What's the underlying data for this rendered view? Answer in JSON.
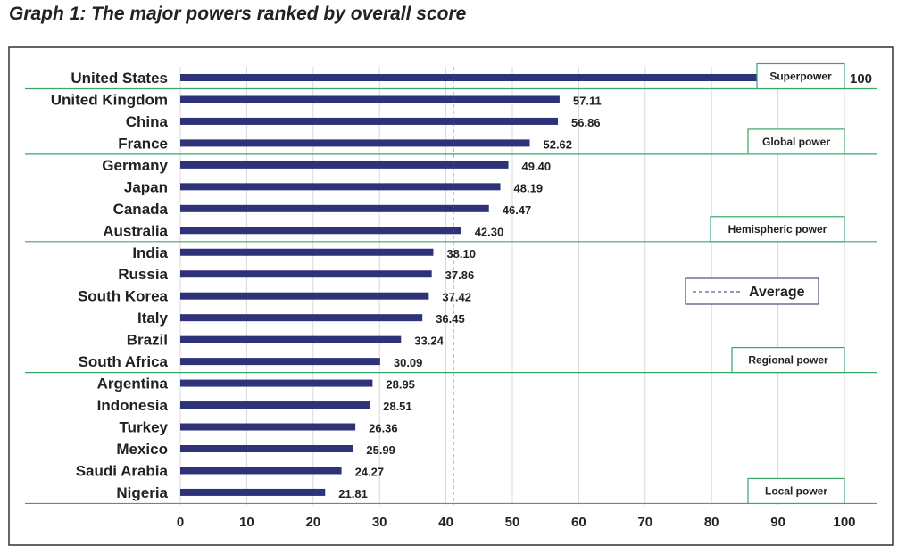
{
  "chart_data": {
    "type": "bar",
    "orientation": "horizontal",
    "title": "Graph 1: The major powers ranked by overall score",
    "categories": [
      "United States",
      "United Kingdom",
      "China",
      "France",
      "Germany",
      "Japan",
      "Canada",
      "Australia",
      "India",
      "Russia",
      "South Korea",
      "Italy",
      "Brazil",
      "South Africa",
      "Argentina",
      "Indonesia",
      "Turkey",
      "Mexico",
      "Saudi Arabia",
      "Nigeria"
    ],
    "values": [
      100,
      57.11,
      56.86,
      52.62,
      49.4,
      48.19,
      46.47,
      42.3,
      38.1,
      37.86,
      37.42,
      36.45,
      33.24,
      30.09,
      28.95,
      28.51,
      26.36,
      25.99,
      24.27,
      21.81
    ],
    "value_labels": [
      "100",
      "57.11",
      "56.86",
      "52.62",
      "49.40",
      "48.19",
      "46.47",
      "42.30",
      "38.10",
      "37.86",
      "37.42",
      "36.45",
      "33.24",
      "30.09",
      "28.95",
      "28.51",
      "26.36",
      "25.99",
      "24.27",
      "21.81"
    ],
    "xlim": [
      0,
      100
    ],
    "xticks": [
      "0",
      "10",
      "20",
      "30",
      "40",
      "50",
      "60",
      "70",
      "80",
      "90",
      "100"
    ],
    "grid": "vertical",
    "average": 41.1,
    "legend": {
      "label": "Average",
      "placement": "right-middle"
    },
    "tiers": [
      {
        "label": "Superpower",
        "last_index": 0
      },
      {
        "label": "Global power",
        "last_index": 3
      },
      {
        "label": "Hemispheric power",
        "last_index": 7
      },
      {
        "label": "Regional power",
        "last_index": 13
      },
      {
        "label": "Local power",
        "last_index": 19
      }
    ],
    "colors": {
      "bar": "#2e3278",
      "tier_line": "#3aa66a",
      "average_line": "#5a5f99",
      "grid": "#d8d8d8"
    }
  }
}
